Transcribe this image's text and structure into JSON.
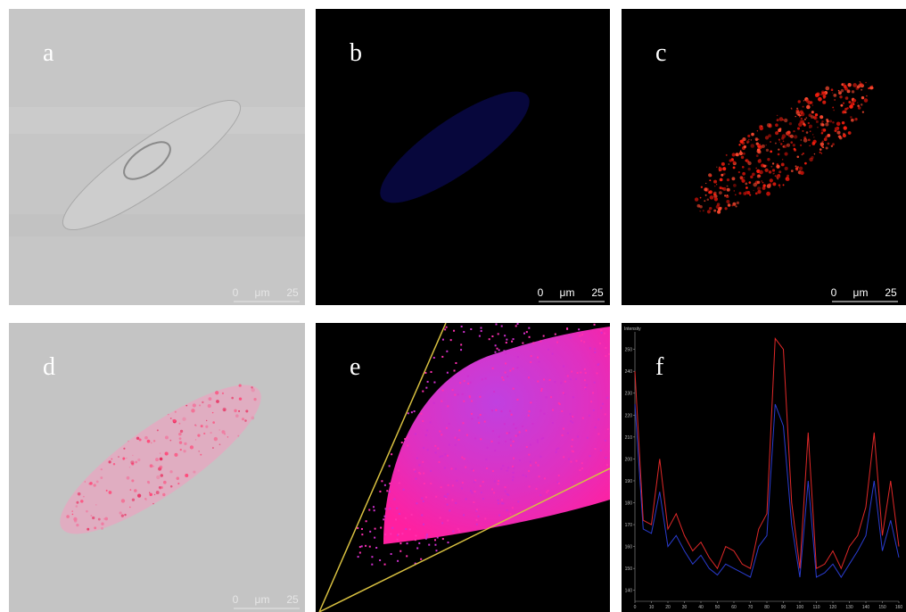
{
  "panels": [
    {
      "label": "a",
      "scale_bar": {
        "start": "0",
        "unit": "μm",
        "end": "25"
      }
    },
    {
      "label": "b",
      "scale_bar": {
        "start": "0",
        "unit": "μm",
        "end": "25"
      }
    },
    {
      "label": "c",
      "scale_bar": {
        "start": "0",
        "unit": "μm",
        "end": "25"
      }
    },
    {
      "label": "d",
      "scale_bar": {
        "start": "0",
        "unit": "μm",
        "end": "25"
      }
    },
    {
      "label": "e"
    },
    {
      "label": "f"
    }
  ],
  "chart_data": {
    "type": "line",
    "y_label": "Intensity",
    "x": [
      0,
      5,
      10,
      15,
      20,
      25,
      30,
      35,
      40,
      45,
      50,
      55,
      60,
      65,
      70,
      75,
      80,
      85,
      90,
      95,
      100,
      105,
      110,
      115,
      120,
      125,
      130,
      135,
      140,
      145,
      150,
      155,
      160
    ],
    "xlim": [
      0,
      160
    ],
    "ylim": [
      135,
      258
    ],
    "xticks": [
      0,
      10,
      20,
      30,
      40,
      50,
      60,
      70,
      80,
      90,
      100,
      110,
      120,
      130,
      140,
      150,
      160
    ],
    "yticks": [
      140,
      150,
      160,
      170,
      180,
      190,
      200,
      210,
      220,
      230,
      240,
      250
    ],
    "series": [
      {
        "color": "#e02828",
        "values": [
          240,
          172,
          170,
          200,
          168,
          175,
          165,
          158,
          162,
          155,
          150,
          160,
          158,
          152,
          150,
          168,
          175,
          255,
          250,
          180,
          150,
          212,
          150,
          152,
          158,
          150,
          160,
          165,
          178,
          212,
          165,
          190,
          160
        ]
      },
      {
        "color": "#2a3cd0",
        "values": [
          225,
          168,
          166,
          185,
          160,
          165,
          158,
          152,
          156,
          150,
          147,
          152,
          150,
          148,
          146,
          160,
          165,
          225,
          215,
          170,
          146,
          190,
          146,
          148,
          152,
          146,
          152,
          158,
          165,
          190,
          158,
          172,
          155
        ]
      }
    ]
  }
}
